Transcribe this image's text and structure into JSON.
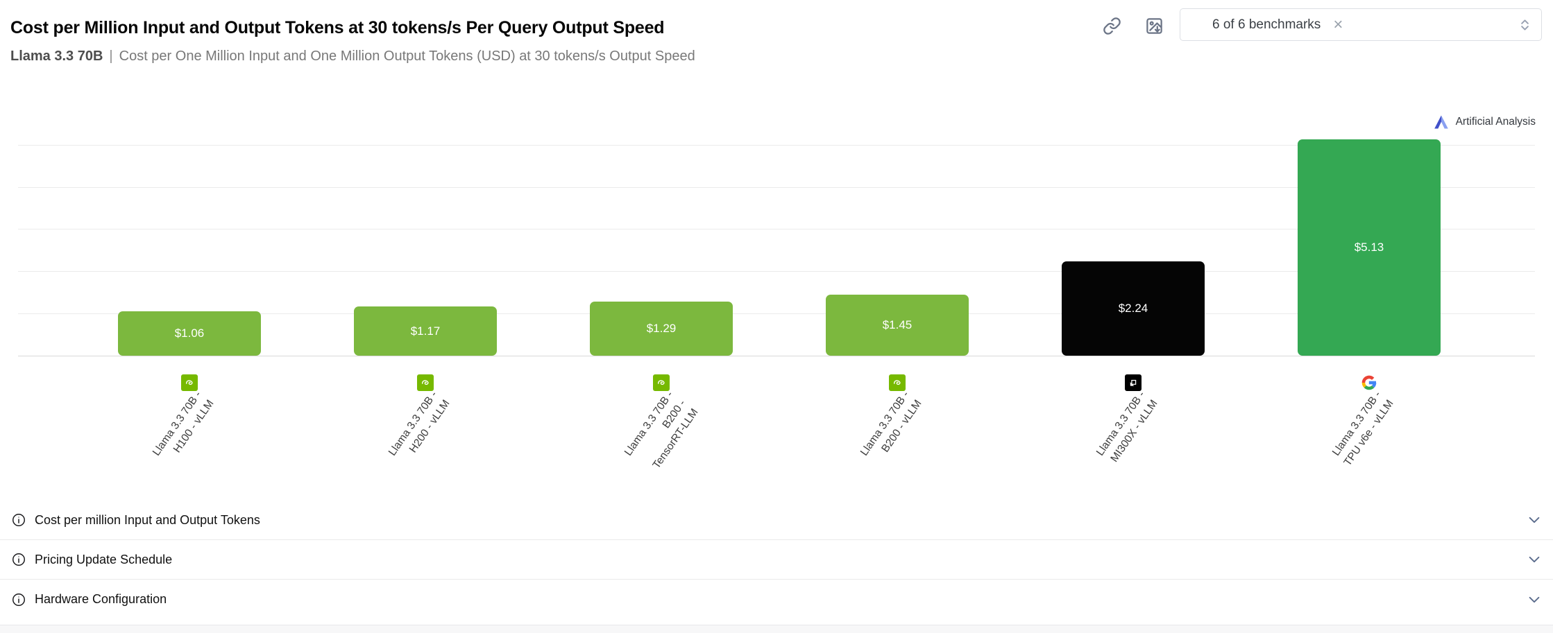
{
  "header": {
    "title": "Cost per Million Input and Output Tokens at 30 tokens/s Per Query Output Speed",
    "subtitle": {
      "model": "Llama 3.3 70B",
      "divider": "|",
      "description": "Cost per One Million Input and One Million Output Tokens (USD) at 30 tokens/s Output Speed"
    }
  },
  "toolbar": {
    "benchmark_filter": {
      "value": "6 of 6 benchmarks",
      "clear_icon": "×"
    }
  },
  "watermark": {
    "label": "Artificial Analysis"
  },
  "chart_data": {
    "type": "bar",
    "title": "Cost per Million Input and Output Tokens at 30 tokens/s Per Query Output Speed",
    "subtitle": "Llama 3.3 70B | Cost per One Million Input and One Million Output Tokens (USD) at 30 tokens/s Output Speed",
    "unit": "USD per one million input and one million output tokens",
    "ylim": [
      0,
      5.5
    ],
    "gridline_step": 1,
    "grid": true,
    "legend": "none",
    "y_axis_labels_visible": false,
    "categories": [
      "Llama 3.3 70B - H100 - vLLM",
      "Llama 3.3 70B - H200 - vLLM",
      "Llama 3.3 70B - B200 - TensorRT-LLM",
      "Llama 3.3 70B - B200 - vLLM",
      "Llama 3.3 70B - MI300X - vLLM",
      "Llama 3.3 70B - TPU v6e - vLLM"
    ],
    "values": [
      1.06,
      1.17,
      1.29,
      1.45,
      2.24,
      5.13
    ],
    "bars": [
      {
        "label_lines": [
          "Llama 3.3 70B -",
          "H100 - vLLM"
        ],
        "value": 1.06,
        "value_label": "$1.06",
        "vendor": "NVIDIA",
        "vendor_icon": "nvidia-icon",
        "color": "#7CB83E"
      },
      {
        "label_lines": [
          "Llama 3.3 70B -",
          "H200 - vLLM"
        ],
        "value": 1.17,
        "value_label": "$1.17",
        "vendor": "NVIDIA",
        "vendor_icon": "nvidia-icon",
        "color": "#7CB83E"
      },
      {
        "label_lines": [
          "Llama 3.3 70B -",
          "B200 -",
          "TensorRT-LLM"
        ],
        "value": 1.29,
        "value_label": "$1.29",
        "vendor": "NVIDIA",
        "vendor_icon": "nvidia-icon",
        "color": "#7CB83E"
      },
      {
        "label_lines": [
          "Llama 3.3 70B -",
          "B200 - vLLM"
        ],
        "value": 1.45,
        "value_label": "$1.45",
        "vendor": "NVIDIA",
        "vendor_icon": "nvidia-icon",
        "color": "#7CB83E"
      },
      {
        "label_lines": [
          "Llama 3.3 70B -",
          "MI300X - vLLM"
        ],
        "value": 2.24,
        "value_label": "$2.24",
        "vendor": "AMD",
        "vendor_icon": "amd-icon",
        "color": "#050505"
      },
      {
        "label_lines": [
          "Llama 3.3 70B -",
          "TPU v6e - vLLM"
        ],
        "value": 5.13,
        "value_label": "$5.13",
        "vendor": "Google",
        "vendor_icon": "google-icon",
        "color": "#34A853"
      }
    ]
  },
  "accordion": {
    "items": [
      {
        "label": "Cost per million Input and Output Tokens"
      },
      {
        "label": "Pricing Update Schedule"
      },
      {
        "label": "Hardware Configuration"
      }
    ]
  },
  "colors": {
    "nvidia_badge_green": "#76B900",
    "nvidia_bar_green": "#7CB83E",
    "amd_black": "#050505",
    "google_green": "#34A853",
    "grid_line": "#EBEBEB",
    "axis_line": "#D8D8D8",
    "toolbar_icon_gray": "#6B7486",
    "accordion_chevron": "#5A6B8C"
  }
}
